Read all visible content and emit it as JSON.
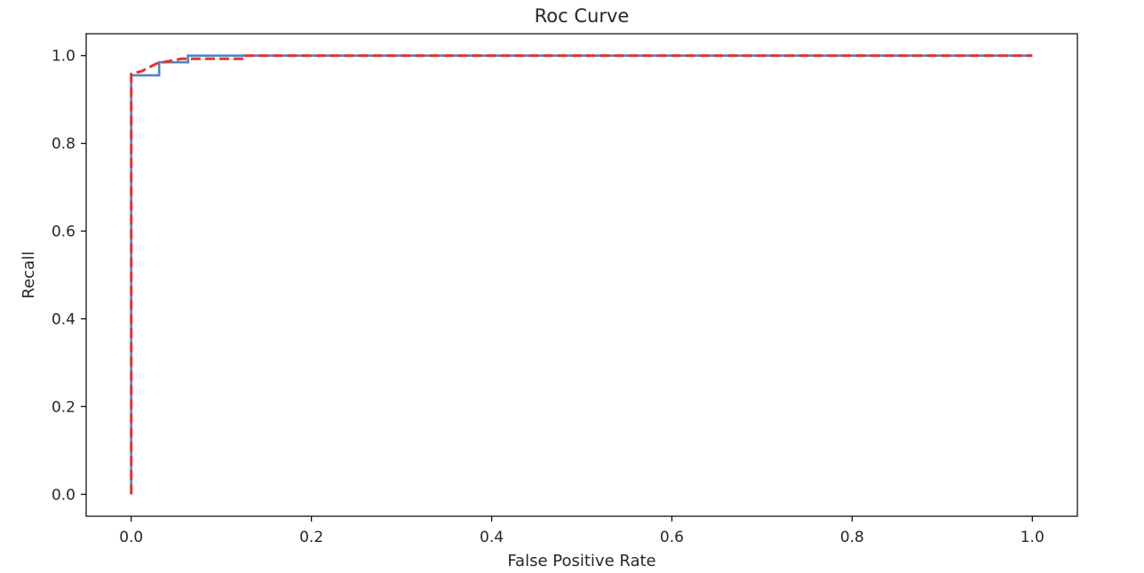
{
  "chart_data": {
    "type": "line",
    "title": "Roc Curve",
    "xlabel": "False Positive Rate",
    "ylabel": "Recall",
    "xlim": [
      -0.05,
      1.05
    ],
    "ylim": [
      -0.05,
      1.05
    ],
    "xticks": [
      0.0,
      0.2,
      0.4,
      0.6,
      0.8,
      1.0
    ],
    "xtick_labels": [
      "0.0",
      "0.2",
      "0.4",
      "0.6",
      "0.8",
      "1.0"
    ],
    "yticks": [
      0.0,
      0.2,
      0.4,
      0.6,
      0.8,
      1.0
    ],
    "ytick_labels": [
      "0.0",
      "0.2",
      "0.4",
      "0.6",
      "0.8",
      "1.0"
    ],
    "grid": false,
    "legend": null,
    "series": [
      {
        "color": "#4a86c6",
        "style": "solid",
        "step": true,
        "points": [
          [
            0.0,
            0.0
          ],
          [
            0.0,
            0.955
          ],
          [
            0.031,
            0.955
          ],
          [
            0.031,
            0.985
          ],
          [
            0.063,
            0.985
          ],
          [
            0.063,
            1.0
          ],
          [
            1.0,
            1.0
          ]
        ]
      },
      {
        "color": "#e8302b",
        "style": "dashed",
        "step": false,
        "points": [
          [
            0.0,
            0.0
          ],
          [
            0.0,
            0.958
          ],
          [
            0.012,
            0.965
          ],
          [
            0.028,
            0.982
          ],
          [
            0.056,
            0.993
          ],
          [
            0.125,
            0.993
          ],
          [
            0.125,
            1.0
          ],
          [
            1.0,
            1.0
          ]
        ]
      }
    ]
  }
}
